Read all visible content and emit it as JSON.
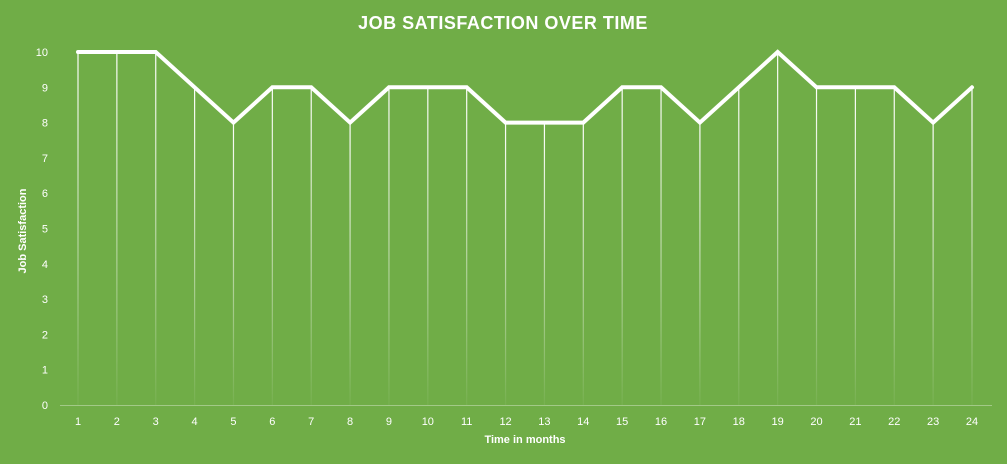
{
  "chart_data": {
    "type": "line",
    "title": "JOB SATISFACTION  OVER TIME",
    "xlabel": "Time in months",
    "ylabel": "Job Satisfaction",
    "categories": [
      "1",
      "2",
      "3",
      "4",
      "5",
      "6",
      "7",
      "8",
      "9",
      "10",
      "11",
      "12",
      "13",
      "14",
      "15",
      "16",
      "17",
      "18",
      "19",
      "20",
      "21",
      "22",
      "23",
      "24"
    ],
    "series": [
      {
        "values": [
          10,
          10,
          10,
          9,
          8,
          9,
          9,
          8,
          9,
          9,
          9,
          8,
          8,
          8,
          9,
          9,
          8,
          9,
          10,
          9,
          9,
          9,
          8,
          9
        ]
      }
    ],
    "ylim": [
      0,
      10
    ],
    "yticks": [
      "0",
      "1",
      "2",
      "3",
      "4",
      "5",
      "6",
      "7",
      "8",
      "9",
      "10"
    ],
    "drop_lines": true,
    "grid": false,
    "legend": "none",
    "colors": {
      "background": "#70ad47",
      "line": "#ffffff",
      "text": "#ffffff"
    }
  }
}
